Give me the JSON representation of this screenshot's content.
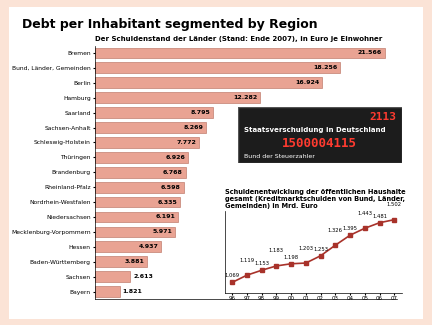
{
  "title": "Debt per Inhabitant segmented by Region",
  "chart_data": [
    {
      "type": "bar",
      "title": "Der Schuldenstand der Länder (Stand: Ende 2007), in Euro je Einwohner",
      "orientation": "horizontal",
      "categories": [
        "Bremen",
        "Bund, Länder, Gemeinden",
        "Berlin",
        "Hamburg",
        "Saarland",
        "Sachsen-Anhalt",
        "Schleswig-Holstein",
        "Thüringen",
        "Brandenburg",
        "Rheinland-Pfalz",
        "Nordrhein-Westfalen",
        "Niedersachsen",
        "Mecklenburg-Vorpommern",
        "Hessen",
        "Baden-Württemberg",
        "Sachsen",
        "Bayern"
      ],
      "values": [
        21566,
        18256,
        16924,
        12282,
        8795,
        8269,
        7772,
        6926,
        6768,
        6598,
        6335,
        6191,
        5971,
        4937,
        3881,
        2613,
        1821
      ],
      "value_labels": [
        "21.566",
        "18.256",
        "16.924",
        "12.282",
        "8.795",
        "8.269",
        "7.772",
        "6.926",
        "6.768",
        "6.598",
        "6.335",
        "6.191",
        "5.971",
        "4.937",
        "3.881",
        "2.613",
        "1.821"
      ],
      "data_labels": true,
      "color": "#e9a393",
      "xlim": [
        0,
        22500
      ],
      "xticks": [],
      "tick_labels": "y",
      "annotations": [
        "2113",
        "Staatsverschuldung in Deutschland",
        "1500004115",
        "Bund der Steuerzahler"
      ]
    },
    {
      "type": "line",
      "title": "Schuldenentwicklung der öffentlichen Haushalte gesamt (Kreditmarktschulden von Bund, Länder, Gemeinden) in Mrd. Euro",
      "categories": [
        "96",
        "97",
        "98",
        "99",
        "00",
        "01",
        "02",
        "03",
        "04",
        "05",
        "06",
        "07"
      ],
      "values": [
        1069,
        1119,
        1153,
        1183,
        1198,
        1203,
        1253,
        1326,
        1395,
        1443,
        1481,
        1502
      ],
      "value_labels": [
        "1.069",
        "1.119",
        "1.153",
        "1.183",
        "1.198",
        "1.203",
        "1.253",
        "1.326",
        "1.395",
        "1.443",
        "1.481",
        "1.502"
      ],
      "data_labels": true,
      "color": "#a8322a",
      "marker": "s",
      "ylim": [
        1000,
        1560
      ],
      "yticks": [],
      "tick_labels": "x"
    }
  ]
}
